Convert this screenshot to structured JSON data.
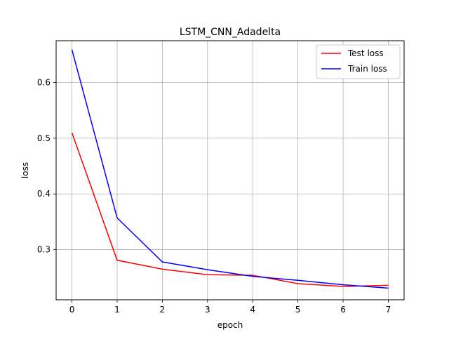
{
  "chart_data": {
    "type": "line",
    "title": "LSTM_CNN_Adadelta",
    "xlabel": "epoch",
    "ylabel": "loss",
    "x": [
      0,
      1,
      2,
      3,
      4,
      5,
      6,
      7
    ],
    "xlim": [
      -0.35,
      7.35
    ],
    "ylim": [
      0.21,
      0.675
    ],
    "xticks": [
      0,
      1,
      2,
      3,
      4,
      5,
      6,
      7
    ],
    "yticks": [
      0.3,
      0.4,
      0.5,
      0.6
    ],
    "ytick_labels": [
      "0.3",
      "0.4",
      "0.5",
      "0.6"
    ],
    "grid": true,
    "legend_position": "top-right",
    "series": [
      {
        "name": "Test loss",
        "color": "#ff0000",
        "values": [
          0.51,
          0.281,
          0.265,
          0.255,
          0.254,
          0.239,
          0.234,
          0.236
        ]
      },
      {
        "name": "Train loss",
        "color": "#0000ff",
        "values": [
          0.659,
          0.357,
          0.278,
          0.264,
          0.252,
          0.245,
          0.237,
          0.231
        ]
      }
    ]
  }
}
